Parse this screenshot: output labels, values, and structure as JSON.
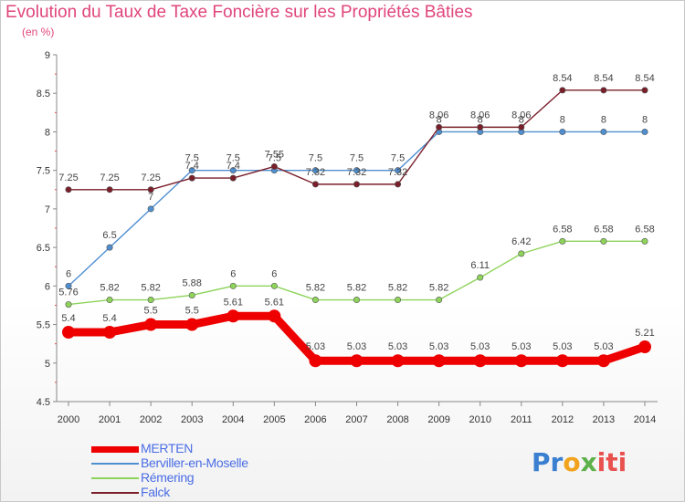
{
  "title": "Evolution du Taux de Taxe Foncière sur les Propriétés Bâties",
  "unit_label": "(en %)",
  "logo": {
    "text": "Proxiti",
    "parts": [
      "Pr",
      "o",
      "x",
      "iti"
    ]
  },
  "colors": {
    "title": "#e0457b",
    "legend_text": "#4a6de5",
    "axis": "#888888"
  },
  "chart_data": {
    "type": "line",
    "title": "Evolution du Taux de Taxe Foncière sur les Propriétés Bâties",
    "ylabel": "(en %)",
    "xlabel": "",
    "x": [
      "2000",
      "2001",
      "2002",
      "2003",
      "2004",
      "2005",
      "2006",
      "2007",
      "2008",
      "2009",
      "2010",
      "2011",
      "2012",
      "2013",
      "2014"
    ],
    "ylim": [
      4.5,
      9
    ],
    "yticks": [
      "4.5",
      "5",
      "5.5",
      "6",
      "6.5",
      "7",
      "7.5",
      "8",
      "8.5",
      "9"
    ],
    "grid": false,
    "legend_position": "bottom-left",
    "series": [
      {
        "name": "MERTEN",
        "color": "#ee0000",
        "values": [
          5.4,
          5.4,
          5.5,
          5.5,
          5.61,
          5.61,
          5.03,
          5.03,
          5.03,
          5.03,
          5.03,
          5.03,
          5.03,
          5.03,
          5.21
        ],
        "labels": [
          "5.4",
          "5.4",
          "5.5",
          "5.5",
          "5.61",
          "5.61",
          "5.03",
          "5.03",
          "5.03",
          "5.03",
          "5.03",
          "5.03",
          "5.03",
          "5.03",
          "5.21"
        ]
      },
      {
        "name": "Berviller-en-Moselle",
        "color": "#4f8fd0",
        "values": [
          6,
          6.5,
          7,
          7.5,
          7.5,
          7.5,
          7.5,
          7.5,
          7.5,
          8,
          8,
          8,
          8,
          8,
          8
        ],
        "labels": [
          "6",
          "6.5",
          "7",
          "7.5",
          "7.5",
          "7.5",
          "7.5",
          "7.5",
          "7.5",
          "8",
          "8",
          "8",
          "8",
          "8",
          "8"
        ]
      },
      {
        "name": "Rémering",
        "color": "#8ed35a",
        "values": [
          5.76,
          5.82,
          5.82,
          5.88,
          6,
          6,
          5.82,
          5.82,
          5.82,
          5.82,
          6.11,
          6.42,
          6.58,
          6.58,
          6.58
        ],
        "labels": [
          "5.76",
          "5.82",
          "5.82",
          "5.88",
          "6",
          "6",
          "5.82",
          "5.82",
          "5.82",
          "5.82",
          "6.11",
          "6.42",
          "6.58",
          "6.58",
          "6.58"
        ]
      },
      {
        "name": "Falck",
        "color": "#7a1f2a",
        "values": [
          7.25,
          7.25,
          7.25,
          7.4,
          7.4,
          7.55,
          7.32,
          7.32,
          7.32,
          8.06,
          8.06,
          8.06,
          8.54,
          8.54,
          8.54
        ],
        "labels": [
          "7.25",
          "7.25",
          "7.25",
          "7.4",
          "7.4",
          "7.55",
          "7.32",
          "7.32",
          "7.32",
          "8.06",
          "8.06",
          "8.06",
          "8.54",
          "8.54",
          "8.54"
        ]
      }
    ]
  }
}
